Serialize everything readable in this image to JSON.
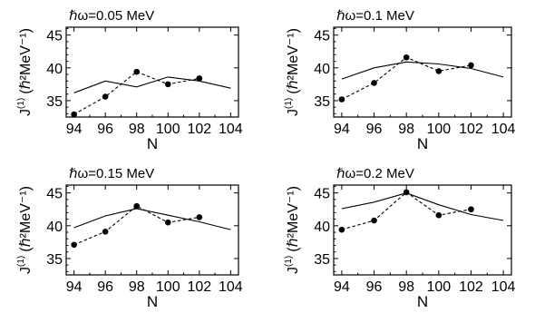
{
  "y_axis_label": {
    "main": "J",
    "sup": "(1)",
    "unit": "(ℏ²MeV⁻¹)"
  },
  "x_axis_label": "N",
  "chart_data": [
    {
      "type": "line",
      "title": "ℏω=0.05 MeV",
      "xlabel": "N",
      "ylabel": "J(1) (ℏ²MeV⁻¹)",
      "xlim": [
        93.5,
        104.5
      ],
      "ylim": [
        32.5,
        46.2
      ],
      "xticks": [
        94,
        96,
        98,
        100,
        102,
        104
      ],
      "xtick_labels": [
        "94",
        "96",
        "98",
        "100",
        "102",
        "104"
      ],
      "yticks": [
        35,
        40,
        45
      ],
      "ytick_labels": [
        "35",
        "40",
        "45"
      ],
      "series": [
        {
          "style": "solid",
          "x": [
            94,
            96,
            98,
            100,
            102,
            104
          ],
          "y": [
            36.2,
            38.0,
            37.1,
            38.6,
            38.0,
            36.9
          ]
        },
        {
          "style": "dashed-markers",
          "x": [
            94,
            96,
            98,
            100,
            102
          ],
          "y": [
            32.9,
            35.6,
            39.4,
            37.5,
            38.4
          ]
        }
      ]
    },
    {
      "type": "line",
      "title": "ℏω=0.1 MeV",
      "xlabel": "N",
      "ylabel": "J(1) (ℏ²MeV⁻¹)",
      "xlim": [
        93.5,
        104.5
      ],
      "ylim": [
        32.5,
        46.2
      ],
      "xticks": [
        94,
        96,
        98,
        100,
        102,
        104
      ],
      "xtick_labels": [
        "94",
        "96",
        "98",
        "100",
        "102",
        "104"
      ],
      "yticks": [
        35,
        40,
        45
      ],
      "ytick_labels": [
        "35",
        "40",
        "45"
      ],
      "series": [
        {
          "style": "solid",
          "x": [
            94,
            96,
            98,
            100,
            102,
            104
          ],
          "y": [
            38.3,
            40.0,
            40.9,
            40.6,
            39.9,
            38.6
          ]
        },
        {
          "style": "dashed-markers",
          "x": [
            94,
            96,
            98,
            100,
            102
          ],
          "y": [
            35.2,
            37.7,
            41.6,
            39.5,
            40.4
          ]
        }
      ]
    },
    {
      "type": "line",
      "title": "ℏω=0.15 MeV",
      "xlabel": "N",
      "ylabel": "J(1) (ℏ²MeV⁻¹)",
      "xlim": [
        93.5,
        104.5
      ],
      "ylim": [
        32.5,
        46.2
      ],
      "xticks": [
        94,
        96,
        98,
        100,
        102,
        104
      ],
      "xtick_labels": [
        "94",
        "96",
        "98",
        "100",
        "102",
        "104"
      ],
      "yticks": [
        35,
        40,
        45
      ],
      "ytick_labels": [
        "35",
        "40",
        "45"
      ],
      "series": [
        {
          "style": "solid",
          "x": [
            94,
            96,
            98,
            100,
            102,
            104
          ],
          "y": [
            39.7,
            41.5,
            42.6,
            41.6,
            40.6,
            39.4
          ]
        },
        {
          "style": "dashed-markers",
          "x": [
            94,
            96,
            98,
            100,
            102
          ],
          "y": [
            37.1,
            39.1,
            43.0,
            40.5,
            41.3
          ]
        }
      ]
    },
    {
      "type": "line",
      "title": "ℏω=0.2 MeV",
      "xlabel": "N",
      "ylabel": "J(1) (ℏ²MeV⁻¹)",
      "xlim": [
        93.5,
        104.5
      ],
      "ylim": [
        32.5,
        46.2
      ],
      "xticks": [
        94,
        96,
        98,
        100,
        102,
        104
      ],
      "xtick_labels": [
        "94",
        "96",
        "98",
        "100",
        "102",
        "104"
      ],
      "yticks": [
        35,
        40,
        45
      ],
      "ytick_labels": [
        "35",
        "40",
        "45"
      ],
      "series": [
        {
          "style": "solid",
          "x": [
            94,
            96,
            98,
            100,
            102,
            104
          ],
          "y": [
            42.6,
            43.6,
            45.0,
            43.2,
            41.7,
            40.8
          ]
        },
        {
          "style": "dashed-markers",
          "x": [
            94,
            96,
            98,
            100,
            102
          ],
          "y": [
            39.4,
            40.8,
            45.1,
            41.6,
            42.5
          ]
        }
      ]
    }
  ]
}
